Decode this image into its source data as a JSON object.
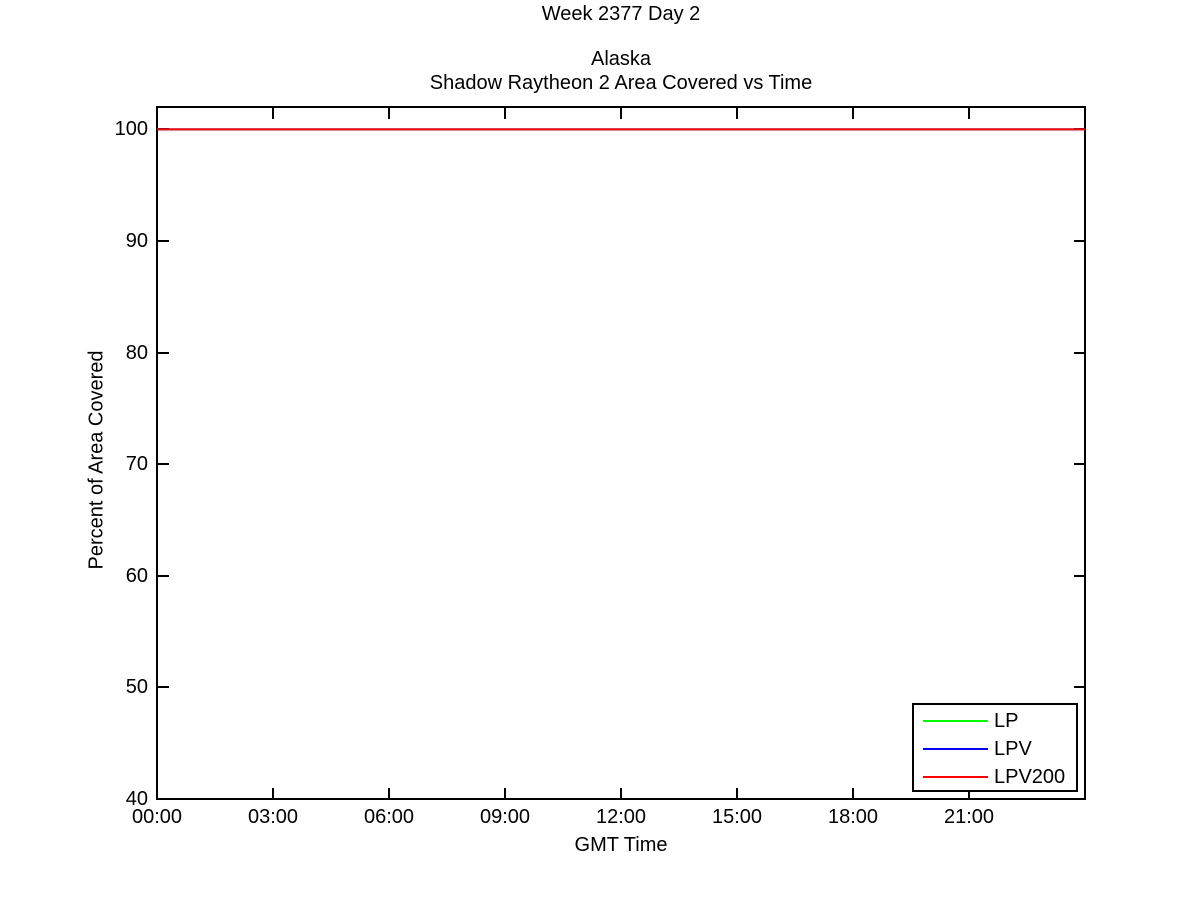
{
  "chart_data": {
    "type": "line",
    "title": "Week 2377 Day 2",
    "subtitle": [
      "Alaska",
      "Shadow Raytheon 2 Area Covered vs Time"
    ],
    "xlabel": "GMT Time",
    "ylabel": "Percent of Area Covered",
    "xlim_hours": [
      0,
      24
    ],
    "ylim": [
      40,
      102
    ],
    "grid": false,
    "axis_color": "#000000",
    "background_color": "#ffffff",
    "x_ticks": [
      {
        "hour": 0,
        "label": "00:00"
      },
      {
        "hour": 3,
        "label": "03:00"
      },
      {
        "hour": 6,
        "label": "06:00"
      },
      {
        "hour": 9,
        "label": "09:00"
      },
      {
        "hour": 12,
        "label": "12:00"
      },
      {
        "hour": 15,
        "label": "15:00"
      },
      {
        "hour": 18,
        "label": "18:00"
      },
      {
        "hour": 21,
        "label": "21:00"
      }
    ],
    "y_ticks": [
      {
        "value": 40,
        "label": "40"
      },
      {
        "value": 50,
        "label": "50"
      },
      {
        "value": 60,
        "label": "60"
      },
      {
        "value": 70,
        "label": "70"
      },
      {
        "value": 80,
        "label": "80"
      },
      {
        "value": 90,
        "label": "90"
      },
      {
        "value": 100,
        "label": "100"
      }
    ],
    "legend": {
      "position": "bottom-right",
      "entries": [
        "LP",
        "LPV",
        "LPV200"
      ]
    },
    "series": [
      {
        "name": "LP",
        "color": "#00ff00",
        "x_hours": [
          0,
          24
        ],
        "values": [
          100,
          100
        ]
      },
      {
        "name": "LPV",
        "color": "#0000ff",
        "x_hours": [
          0,
          24
        ],
        "values": [
          100,
          100
        ]
      },
      {
        "name": "LPV200",
        "color": "#ff0000",
        "x_hours": [
          0,
          24
        ],
        "values": [
          100,
          100
        ]
      }
    ]
  }
}
